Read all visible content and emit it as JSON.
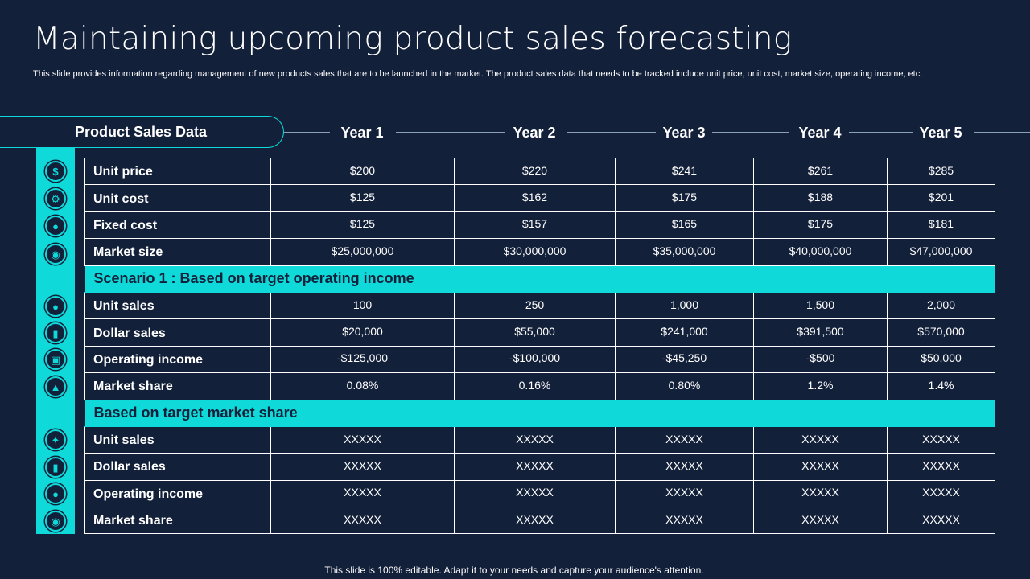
{
  "title": "Maintaining upcoming product sales forecasting",
  "subtitle": "This slide provides information regarding management of new products sales that are to be launched in the market. The product sales data that needs to be tracked include unit price, unit cost, market size, operating income, etc.",
  "header_label": "Product Sales Data",
  "years": [
    "Year 1",
    "Year 2",
    "Year 3",
    "Year 4",
    "Year 5"
  ],
  "rows_basic": [
    {
      "label": "Unit price",
      "icon": "dollar-coin-icon",
      "values": [
        "$200",
        "$220",
        "$241",
        "$261",
        "$285"
      ]
    },
    {
      "label": "Unit cost",
      "icon": "gear-coin-icon",
      "values": [
        "$125",
        "$162",
        "$175",
        "$188",
        "$201"
      ]
    },
    {
      "label": "Fixed cost",
      "icon": "money-bag-icon",
      "values": [
        "$125",
        "$157",
        "$165",
        "$175",
        "$181"
      ]
    },
    {
      "label": "Market size",
      "icon": "market-globe-icon",
      "values": [
        "$25,000,000",
        "$30,000,000",
        "$35,000,000",
        "$40,000,000",
        "$47,000,000"
      ]
    }
  ],
  "section1": "Scenario 1 : Based on target operating income",
  "rows_scenario1": [
    {
      "label": "Unit sales",
      "icon": "money-bag-icon",
      "values": [
        "100",
        "250",
        "1,000",
        "1,500",
        "2,000"
      ]
    },
    {
      "label": "Dollar sales",
      "icon": "bar-chart-icon",
      "values": [
        "$20,000",
        "$55,000",
        "$241,000",
        "$391,500",
        "$570,000"
      ]
    },
    {
      "label": "Operating income",
      "icon": "monitor-dollar-icon",
      "values": [
        "-$125,000",
        "-$100,000",
        "-$45,250",
        "-$500",
        "$50,000"
      ]
    },
    {
      "label": "Market share",
      "icon": "growth-chart-icon",
      "values": [
        "0.08%",
        "0.16%",
        "0.80%",
        "1.2%",
        "1.4%"
      ]
    }
  ],
  "section2": "Based on target market share",
  "rows_scenario2": [
    {
      "label": "Unit sales",
      "icon": "handshake-icon",
      "values": [
        "XXXXX",
        "XXXXX",
        "XXXXX",
        "XXXXX",
        "XXXXX"
      ]
    },
    {
      "label": "Dollar sales",
      "icon": "bar-chart-icon",
      "values": [
        "XXXXX",
        "XXXXX",
        "XXXXX",
        "XXXXX",
        "XXXXX"
      ]
    },
    {
      "label": "Operating income",
      "icon": "money-bag-icon",
      "values": [
        "XXXXX",
        "XXXXX",
        "XXXXX",
        "XXXXX",
        "XXXXX"
      ]
    },
    {
      "label": "Market share",
      "icon": "market-globe-icon",
      "values": [
        "XXXXX",
        "XXXXX",
        "XXXXX",
        "XXXXX",
        "XXXXX"
      ]
    }
  ],
  "footer": "This slide is 100% editable. Adapt it to your needs and capture your audience's attention.",
  "colors": {
    "background": "#13203a",
    "accent": "#0fd9d9",
    "text": "#ffffff"
  }
}
